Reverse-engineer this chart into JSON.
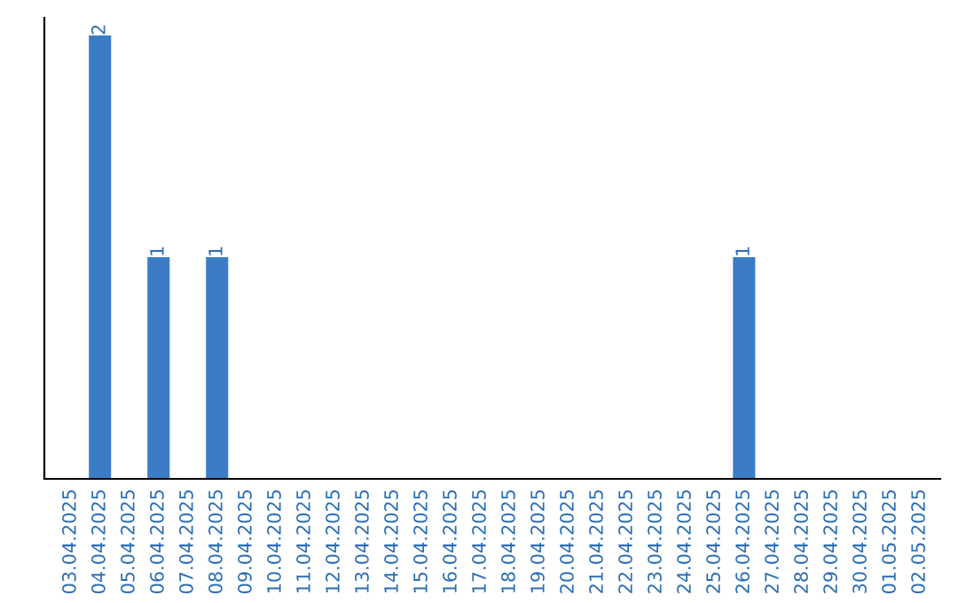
{
  "chart_data": {
    "type": "bar",
    "categories": [
      "03.04.2025",
      "04.04.2025",
      "05.04.2025",
      "06.04.2025",
      "07.04.2025",
      "08.04.2025",
      "09.04.2025",
      "10.04.2025",
      "11.04.2025",
      "12.04.2025",
      "13.04.2025",
      "14.04.2025",
      "15.04.2025",
      "16.04.2025",
      "17.04.2025",
      "18.04.2025",
      "19.04.2025",
      "20.04.2025",
      "21.04.2025",
      "22.04.2025",
      "23.04.2025",
      "24.04.2025",
      "25.04.2025",
      "26.04.2025",
      "27.04.2025",
      "28.04.2025",
      "29.04.2025",
      "30.04.2025",
      "01.05.2025",
      "02.05.2025"
    ],
    "values": [
      0,
      2,
      0,
      1,
      0,
      1,
      0,
      0,
      0,
      0,
      0,
      0,
      0,
      0,
      0,
      0,
      0,
      0,
      0,
      0,
      0,
      0,
      0,
      1,
      0,
      0,
      0,
      0,
      0,
      0
    ],
    "value_labels": [
      null,
      "2",
      null,
      "1",
      null,
      "1",
      null,
      null,
      null,
      null,
      null,
      null,
      null,
      null,
      null,
      null,
      null,
      null,
      null,
      null,
      null,
      null,
      null,
      "1",
      null,
      null,
      null,
      null,
      null,
      null
    ],
    "color": "#3b7dc4",
    "grid": false,
    "legend": false
  }
}
